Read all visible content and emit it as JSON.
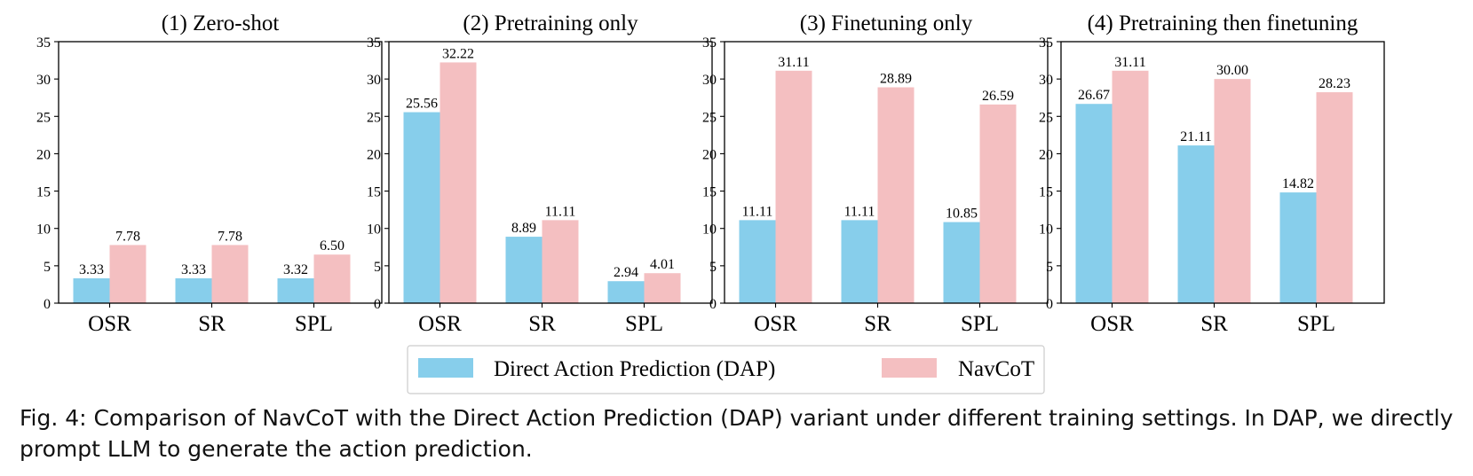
{
  "chart_data": [
    {
      "type": "bar",
      "title": "(1) Zero-shot",
      "categories": [
        "OSR",
        "SR",
        "SPL"
      ],
      "series": [
        {
          "name": "Direct Action Prediction (DAP)",
          "values": [
            3.33,
            3.33,
            3.32
          ]
        },
        {
          "name": "NavCoT",
          "values": [
            7.78,
            7.78,
            6.5
          ]
        }
      ],
      "labels": [
        [
          "3.33",
          "3.33",
          "3.32"
        ],
        [
          "7.78",
          "7.78",
          "6.50"
        ]
      ],
      "ylim": [
        0,
        35
      ],
      "yticks": [
        "0",
        "5",
        "10",
        "15",
        "20",
        "25",
        "30",
        "35"
      ],
      "grid": false
    },
    {
      "type": "bar",
      "title": "(2) Pretraining only",
      "categories": [
        "OSR",
        "SR",
        "SPL"
      ],
      "series": [
        {
          "name": "Direct Action Prediction (DAP)",
          "values": [
            25.56,
            8.89,
            2.94
          ]
        },
        {
          "name": "NavCoT",
          "values": [
            32.22,
            11.11,
            4.01
          ]
        }
      ],
      "labels": [
        [
          "25.56",
          "8.89",
          "2.94"
        ],
        [
          "32.22",
          "11.11",
          "4.01"
        ]
      ],
      "ylim": [
        0,
        35
      ],
      "yticks": [
        "0",
        "5",
        "10",
        "15",
        "20",
        "25",
        "30",
        "35"
      ],
      "grid": false
    },
    {
      "type": "bar",
      "title": "(3) Finetuning only",
      "categories": [
        "OSR",
        "SR",
        "SPL"
      ],
      "series": [
        {
          "name": "Direct Action Prediction (DAP)",
          "values": [
            11.11,
            11.11,
            10.85
          ]
        },
        {
          "name": "NavCoT",
          "values": [
            31.11,
            28.89,
            26.59
          ]
        }
      ],
      "labels": [
        [
          "11.11",
          "11.11",
          "10.85"
        ],
        [
          "31.11",
          "28.89",
          "26.59"
        ]
      ],
      "ylim": [
        0,
        35
      ],
      "yticks": [
        "0",
        "5",
        "10",
        "15",
        "20",
        "25",
        "30",
        "35"
      ],
      "grid": false
    },
    {
      "type": "bar",
      "title": "(4) Pretraining then finetuning",
      "categories": [
        "OSR",
        "SR",
        "SPL"
      ],
      "series": [
        {
          "name": "Direct Action Prediction (DAP)",
          "values": [
            26.67,
            21.11,
            14.82
          ]
        },
        {
          "name": "NavCoT",
          "values": [
            31.11,
            30.0,
            28.23
          ]
        }
      ],
      "labels": [
        [
          "26.67",
          "21.11",
          "14.82"
        ],
        [
          "31.11",
          "30.00",
          "28.23"
        ]
      ],
      "ylim": [
        0,
        35
      ],
      "yticks": [
        "0",
        "5",
        "10",
        "15",
        "20",
        "25",
        "30",
        "35"
      ],
      "grid": false
    }
  ],
  "legend": {
    "position": "bottom-center",
    "items": [
      {
        "label": "Direct Action Prediction (DAP)",
        "color": "#87ceeb"
      },
      {
        "label": "NavCoT",
        "color": "#f4bfc1"
      }
    ]
  },
  "colors": {
    "dap": "#87ceeb",
    "navcot": "#f4bfc1"
  },
  "caption": "Fig. 4: Comparison of NavCoT with the Direct Action Prediction (DAP) variant under different training settings. In DAP, we directly prompt LLM to generate the action prediction."
}
